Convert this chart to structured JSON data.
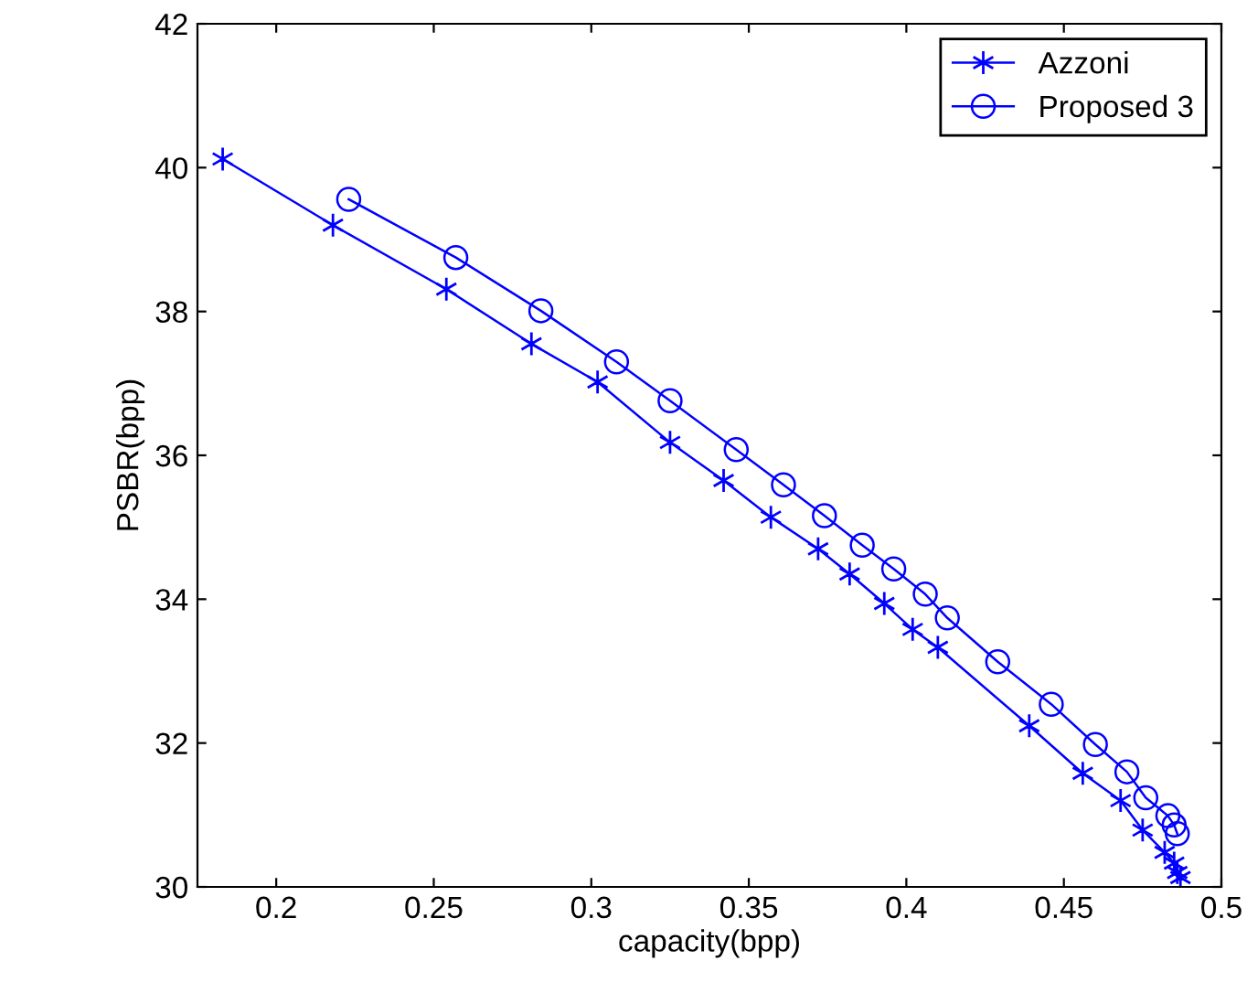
{
  "chart_data": {
    "type": "line",
    "xlabel": "capacity(bpp)",
    "ylabel": "PSBR(bpp)",
    "xlim": [
      0.175,
      0.5
    ],
    "ylim": [
      30,
      42
    ],
    "xticks": [
      0.2,
      0.25,
      0.3,
      0.35,
      0.4,
      0.45,
      0.5
    ],
    "yticks": [
      30,
      32,
      34,
      36,
      38,
      40,
      42
    ],
    "grid": false,
    "legend": "top right",
    "line_style": "solid",
    "series": [
      {
        "name": "Azzoni",
        "color": "#0000ff",
        "marker": "cross",
        "x": [
          0.183,
          0.218,
          0.254,
          0.281,
          0.302,
          0.325,
          0.342,
          0.357,
          0.372,
          0.382,
          0.393,
          0.402,
          0.41,
          0.439,
          0.456,
          0.468,
          0.475,
          0.482,
          0.485,
          0.486,
          0.487
        ],
        "values": [
          40.12,
          39.2,
          38.31,
          37.55,
          37.02,
          36.18,
          35.65,
          35.14,
          34.7,
          34.35,
          33.94,
          33.58,
          33.33,
          32.24,
          31.58,
          31.2,
          30.79,
          30.48,
          30.33,
          30.2,
          30.13
        ]
      },
      {
        "name": "Proposed 3",
        "color": "#0000ff",
        "marker": "circle",
        "x": [
          0.223,
          0.257,
          0.284,
          0.308,
          0.325,
          0.346,
          0.361,
          0.374,
          0.386,
          0.396,
          0.406,
          0.413,
          0.429,
          0.446,
          0.46,
          0.47,
          0.476,
          0.483,
          0.485,
          0.486
        ],
        "values": [
          39.56,
          38.75,
          38.01,
          37.3,
          36.76,
          36.08,
          35.59,
          35.16,
          34.75,
          34.42,
          34.07,
          33.74,
          33.13,
          32.54,
          31.98,
          31.6,
          31.24,
          30.99,
          30.86,
          30.74
        ]
      }
    ]
  }
}
